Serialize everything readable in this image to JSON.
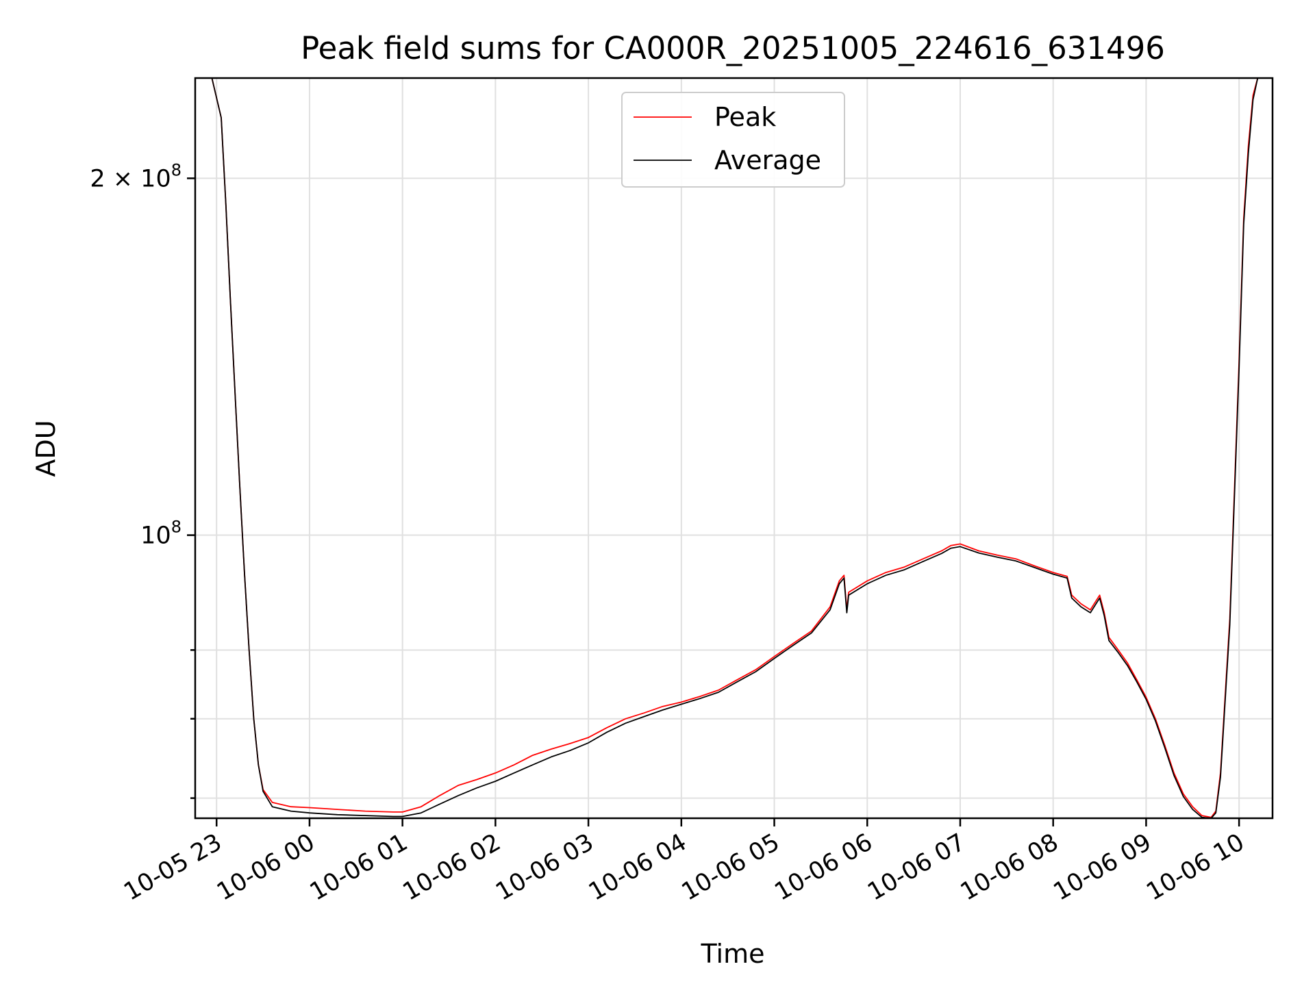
{
  "chart_data": {
    "type": "line",
    "title": "Peak field sums for CA000R_20251005_224616_631496",
    "xlabel": "Time",
    "ylabel": "ADU",
    "yscale": "log",
    "grid": true,
    "legend_position": "top-center",
    "xlim": [
      22.77,
      34.36
    ],
    "ylim": [
      57700000,
      243000000
    ],
    "x_ticks": [
      {
        "value": 23,
        "label": "10-05 23"
      },
      {
        "value": 24,
        "label": "10-06 00"
      },
      {
        "value": 25,
        "label": "10-06 01"
      },
      {
        "value": 26,
        "label": "10-06 02"
      },
      {
        "value": 27,
        "label": "10-06 03"
      },
      {
        "value": 28,
        "label": "10-06 04"
      },
      {
        "value": 29,
        "label": "10-06 05"
      },
      {
        "value": 30,
        "label": "10-06 06"
      },
      {
        "value": 31,
        "label": "10-06 07"
      },
      {
        "value": 32,
        "label": "10-06 08"
      },
      {
        "value": 33,
        "label": "10-06 09"
      },
      {
        "value": 34,
        "label": "10-06 10"
      }
    ],
    "y_major_ticks": [
      {
        "value": 100000000,
        "base": "10",
        "exp": "8"
      },
      {
        "value": 200000000,
        "base": "2 × 10",
        "exp": "8"
      }
    ],
    "y_minor_ticks": [
      60000000,
      70000000,
      80000000
    ],
    "series": [
      {
        "name": "Peak",
        "color": "#ff0000",
        "x": [
          22.77,
          22.95,
          23.05,
          23.1,
          23.15,
          23.2,
          23.25,
          23.3,
          23.35,
          23.4,
          23.45,
          23.5,
          23.6,
          23.8,
          24.0,
          24.3,
          24.6,
          24.9,
          25.0,
          25.2,
          25.4,
          25.6,
          25.8,
          26.0,
          26.2,
          26.4,
          26.6,
          26.8,
          27.0,
          27.2,
          27.4,
          27.6,
          27.8,
          28.0,
          28.2,
          28.4,
          28.6,
          28.8,
          29.0,
          29.2,
          29.4,
          29.6,
          29.7,
          29.75,
          29.78,
          29.8,
          30.0,
          30.2,
          30.4,
          30.6,
          30.8,
          30.9,
          31.0,
          31.2,
          31.4,
          31.6,
          31.8,
          32.0,
          32.15,
          32.2,
          32.3,
          32.4,
          32.5,
          32.55,
          32.6,
          32.7,
          32.8,
          32.9,
          33.0,
          33.1,
          33.2,
          33.3,
          33.4,
          33.5,
          33.6,
          33.7,
          33.75,
          33.8,
          33.9,
          34.0,
          34.05,
          34.1,
          34.15,
          34.2,
          34.36
        ],
        "y": [
          243000000,
          243000000,
          225000000,
          190000000,
          157000000,
          131000000,
          110000000,
          93000000,
          80000000,
          70000000,
          64000000,
          61000000,
          59500000,
          59000000,
          58900000,
          58700000,
          58500000,
          58400000,
          58400000,
          59000000,
          60300000,
          61500000,
          62200000,
          63000000,
          64000000,
          65200000,
          66000000,
          66700000,
          67500000,
          68800000,
          70000000,
          70800000,
          71700000,
          72300000,
          73100000,
          74000000,
          75500000,
          77000000,
          79000000,
          81000000,
          83000000,
          87000000,
          91500000,
          92500000,
          86500000,
          89500000,
          91500000,
          93000000,
          94000000,
          95500000,
          97000000,
          98000000,
          98300000,
          97000000,
          96200000,
          95500000,
          94200000,
          93000000,
          92300000,
          89000000,
          87500000,
          86500000,
          89000000,
          86000000,
          82000000,
          80000000,
          78000000,
          75500000,
          73000000,
          70000000,
          66500000,
          63000000,
          60500000,
          59000000,
          58000000,
          57800000,
          58500000,
          63000000,
          85000000,
          140000000,
          185000000,
          213000000,
          235000000,
          243000000,
          243000000
        ]
      },
      {
        "name": "Average",
        "color": "#000000",
        "x": [
          22.77,
          22.95,
          23.05,
          23.1,
          23.15,
          23.2,
          23.25,
          23.3,
          23.35,
          23.4,
          23.45,
          23.5,
          23.6,
          23.8,
          24.0,
          24.3,
          24.6,
          24.9,
          25.0,
          25.2,
          25.4,
          25.6,
          25.8,
          26.0,
          26.2,
          26.4,
          26.6,
          26.8,
          27.0,
          27.2,
          27.4,
          27.6,
          27.8,
          28.0,
          28.2,
          28.4,
          28.6,
          28.8,
          29.0,
          29.2,
          29.4,
          29.6,
          29.7,
          29.75,
          29.78,
          29.8,
          30.0,
          30.2,
          30.4,
          30.6,
          30.8,
          30.9,
          31.0,
          31.2,
          31.4,
          31.6,
          31.8,
          32.0,
          32.15,
          32.2,
          32.3,
          32.4,
          32.5,
          32.55,
          32.6,
          32.7,
          32.8,
          32.9,
          33.0,
          33.1,
          33.2,
          33.3,
          33.4,
          33.5,
          33.6,
          33.7,
          33.75,
          33.8,
          33.9,
          34.0,
          34.05,
          34.1,
          34.15,
          34.2,
          34.36
        ],
        "y": [
          243000000,
          243000000,
          225000000,
          190000000,
          157000000,
          131000000,
          110000000,
          93000000,
          80000000,
          70000000,
          64000000,
          60800000,
          59000000,
          58500000,
          58300000,
          58100000,
          58000000,
          57900000,
          57900000,
          58300000,
          59300000,
          60300000,
          61200000,
          62000000,
          63000000,
          64000000,
          65000000,
          65800000,
          66800000,
          68200000,
          69400000,
          70300000,
          71200000,
          72000000,
          72800000,
          73700000,
          75200000,
          76700000,
          78700000,
          80700000,
          82700000,
          86500000,
          91000000,
          92000000,
          86000000,
          89000000,
          91000000,
          92500000,
          93500000,
          95000000,
          96500000,
          97500000,
          97800000,
          96600000,
          95800000,
          95100000,
          93900000,
          92700000,
          92000000,
          88500000,
          87000000,
          86000000,
          88500000,
          85500000,
          81500000,
          79600000,
          77600000,
          75200000,
          72700000,
          69700000,
          66200000,
          62700000,
          60200000,
          58700000,
          57800000,
          57700000,
          58300000,
          62500000,
          84000000,
          138000000,
          183000000,
          210000000,
          233000000,
          243000000,
          243000000
        ]
      }
    ]
  }
}
